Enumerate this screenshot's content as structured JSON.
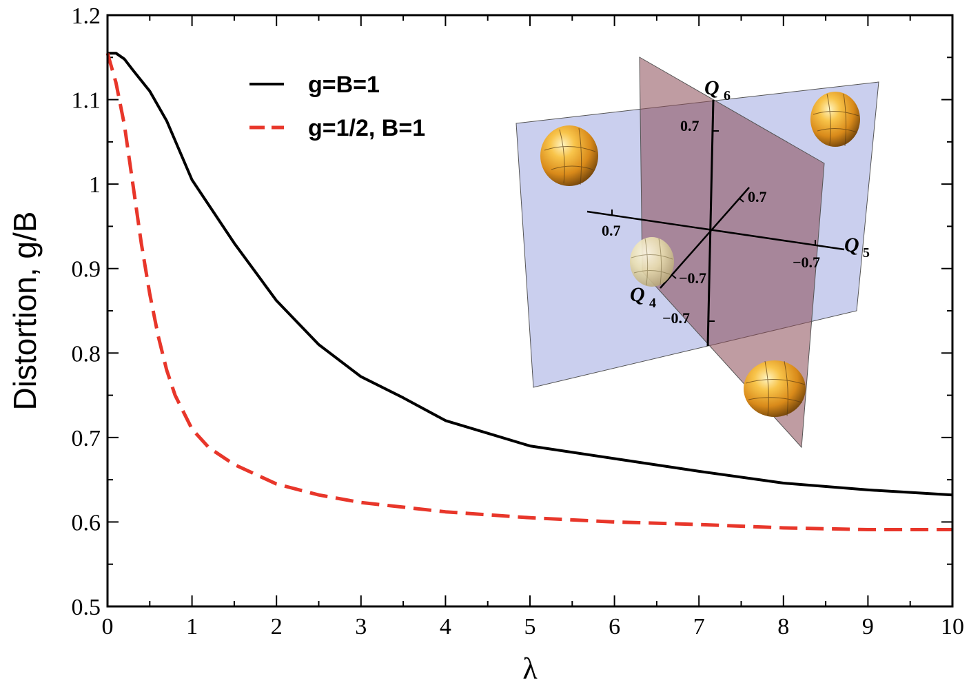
{
  "chart_data": {
    "type": "line",
    "xlabel": "λ",
    "ylabel": "Distortion, g/B",
    "xlim": [
      0,
      10
    ],
    "ylim": [
      0.5,
      1.2
    ],
    "xticks": [
      "0",
      "1",
      "2",
      "3",
      "4",
      "5",
      "6",
      "7",
      "8",
      "9",
      "10"
    ],
    "yticks": [
      "0.5",
      "0.6",
      "0.7",
      "0.8",
      "0.9",
      "1",
      "1.1",
      "1.2"
    ],
    "grid": false,
    "legend_position": "top-left",
    "series": [
      {
        "name": "g=B=1",
        "color": "#000000",
        "style": "solid",
        "x": [
          0,
          0.1,
          0.2,
          0.3,
          0.5,
          0.7,
          1,
          1.5,
          2,
          2.5,
          3,
          3.5,
          4,
          4.5,
          5,
          6,
          7,
          8,
          9,
          10
        ],
        "y": [
          1.155,
          1.155,
          1.148,
          1.135,
          1.11,
          1.075,
          1.005,
          0.93,
          0.862,
          0.81,
          0.772,
          0.747,
          0.72,
          0.705,
          0.69,
          0.675,
          0.66,
          0.646,
          0.638,
          0.632
        ]
      },
      {
        "name": "g=1/2, B=1",
        "color": "#e8362a",
        "style": "dashed",
        "x": [
          0,
          0.1,
          0.2,
          0.3,
          0.4,
          0.5,
          0.6,
          0.7,
          0.8,
          1,
          1.2,
          1.5,
          2,
          2.5,
          3,
          4,
          5,
          6,
          7,
          8,
          9,
          10
        ],
        "y": [
          1.155,
          1.12,
          1.07,
          1.0,
          0.93,
          0.87,
          0.82,
          0.78,
          0.75,
          0.71,
          0.688,
          0.668,
          0.645,
          0.632,
          0.623,
          0.612,
          0.605,
          0.6,
          0.597,
          0.593,
          0.591,
          0.591
        ]
      }
    ],
    "inset": {
      "axis_labels": [
        "Q",
        "Q",
        "Q"
      ],
      "axis_subscripts": [
        "4",
        "5",
        "6"
      ],
      "tick_labels": [
        "0.7",
        "0.7",
        "0.7",
        "−0.7",
        "−0.7",
        "−0.7"
      ]
    }
  }
}
